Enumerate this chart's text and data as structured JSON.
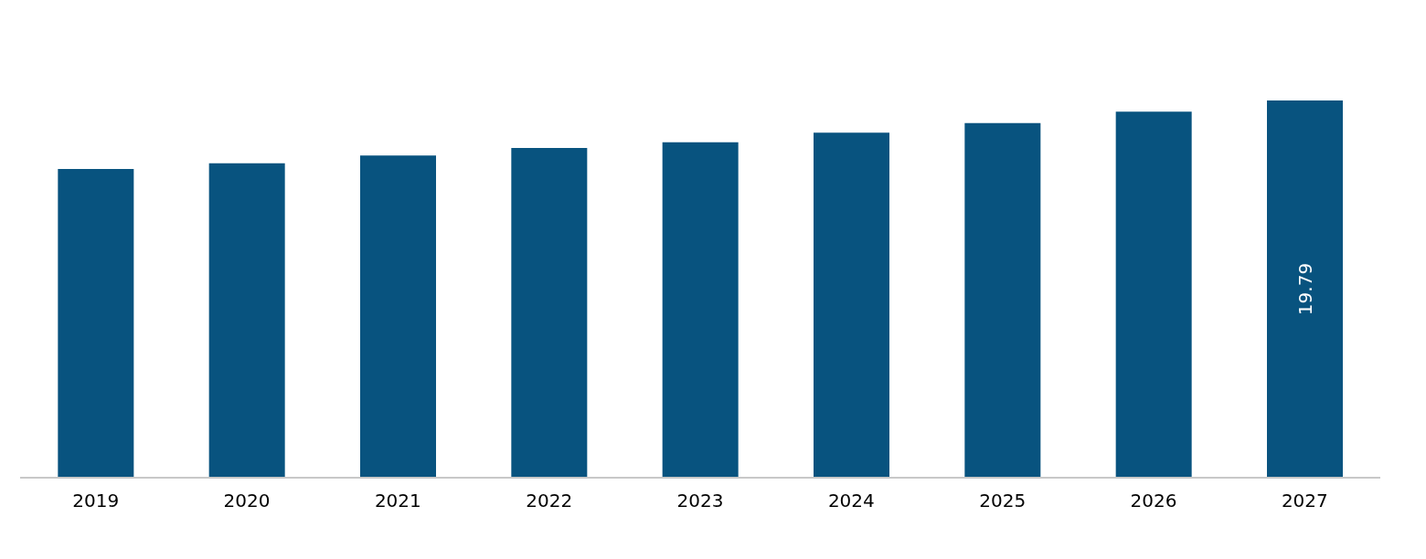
{
  "chart_data": {
    "type": "bar",
    "categories": [
      "2019",
      "2020",
      "2021",
      "2022",
      "2023",
      "2024",
      "2025",
      "2026",
      "2027"
    ],
    "values": [
      16.2,
      16.5,
      16.9,
      17.3,
      17.6,
      18.1,
      18.6,
      19.2,
      19.79
    ],
    "value_labels": [
      null,
      null,
      null,
      null,
      null,
      null,
      null,
      null,
      "19.79"
    ],
    "color": "#08537f",
    "grid": false
  }
}
